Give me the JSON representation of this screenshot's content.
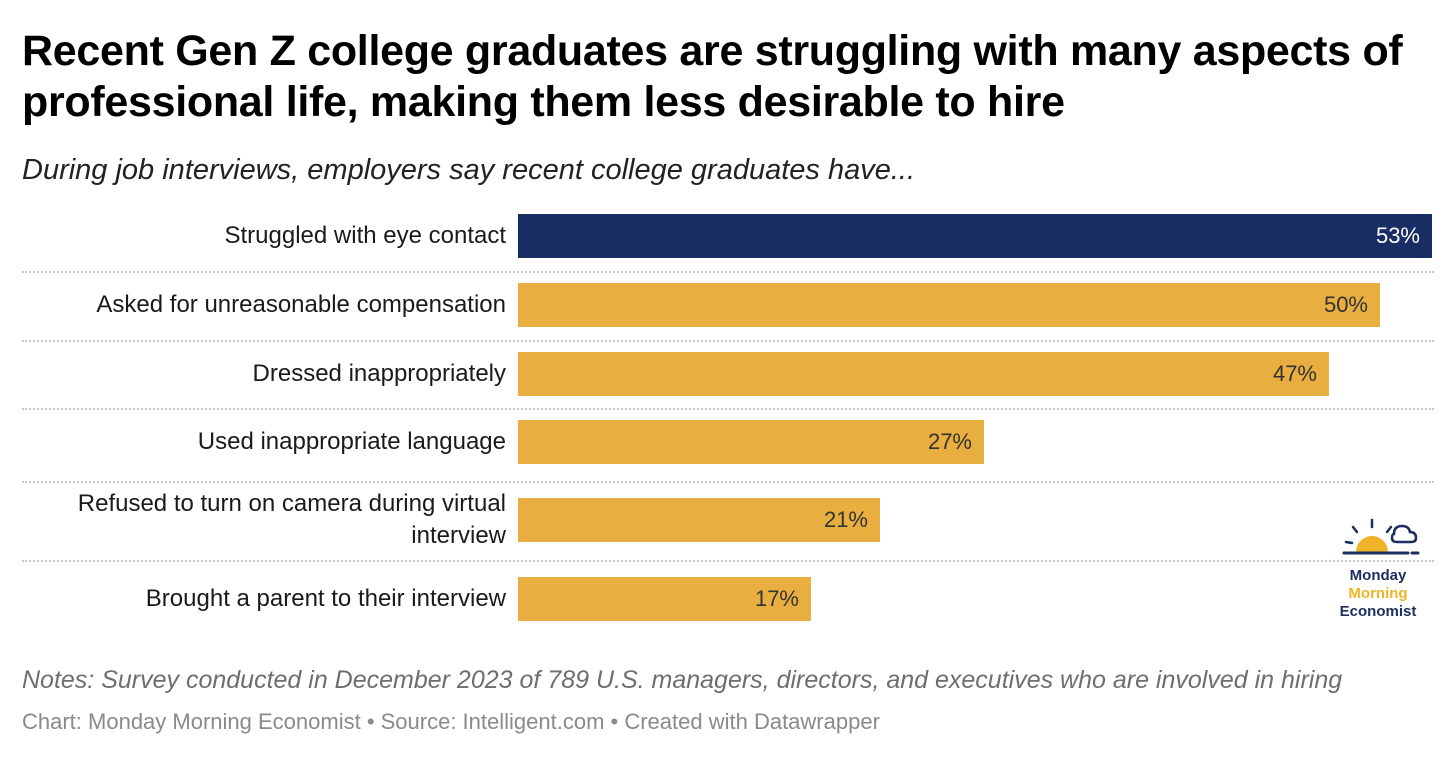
{
  "header": {
    "title": "Recent Gen Z college graduates are struggling with many aspects of professional life, making them less desirable to hire",
    "subtitle": "During job interviews, employers say recent college graduates have..."
  },
  "chart_data": {
    "type": "bar",
    "orientation": "horizontal",
    "categories": [
      "Struggled with eye contact",
      "Asked for unreasonable compensation",
      "Dressed inappropriately",
      "Used inappropriate language",
      "Refused to turn on camera during virtual interview",
      "Brought a parent to their interview"
    ],
    "values": [
      53,
      50,
      47,
      27,
      21,
      17
    ],
    "value_labels": [
      "53%",
      "50%",
      "47%",
      "27%",
      "21%",
      "17%"
    ],
    "xlim": [
      0,
      53
    ],
    "unit": "%",
    "highlight_index": 0,
    "colors": {
      "highlight": "#172d64",
      "default": "#e9ae40",
      "highlight_label": "#ffffff",
      "default_label": "#333333"
    }
  },
  "logo": {
    "line1": "Monday",
    "line2": "Morning",
    "line3": "Economist",
    "colors": {
      "navy": "#1b2e5e",
      "gold": "#f0b429"
    }
  },
  "footer": {
    "notes": "Notes: Survey conducted in December 2023 of 789 U.S. managers, directors, and executives who are involved in hiring",
    "credit": "Chart: Monday Morning Economist • Source: Intelligent.com • Created with Datawrapper"
  }
}
